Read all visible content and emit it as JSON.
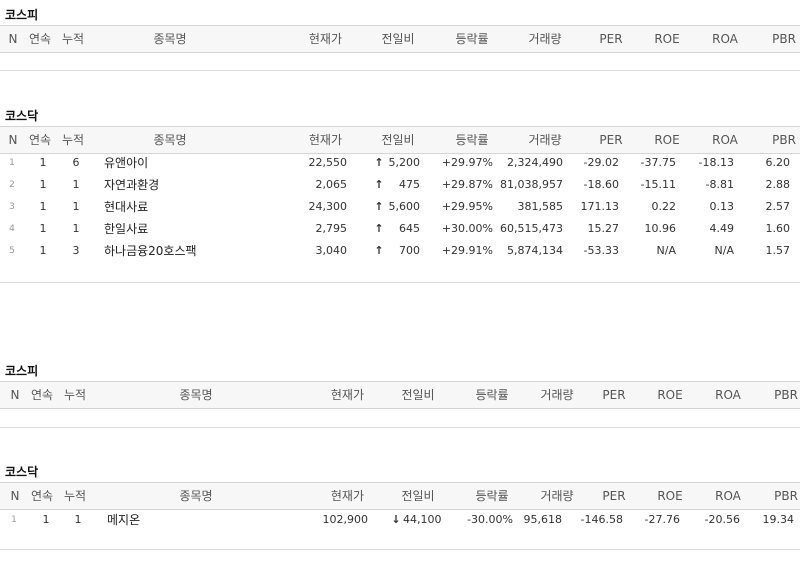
{
  "columns": {
    "n": "N",
    "streak": "연속",
    "total": "누적",
    "name": "종목명",
    "price": "현재가",
    "change": "전일비",
    "rate": "등락률",
    "volume": "거래량",
    "per": "PER",
    "roe": "ROE",
    "roa": "ROA",
    "pbr": "PBR"
  },
  "colors": {
    "up": "#d40000",
    "down": "#1e5fc8",
    "header_bg": "#f7f7f7"
  },
  "icons": {
    "up": "up-arrow-icon",
    "down": "down-arrow-icon"
  },
  "sections": [
    {
      "title": "코스피",
      "rows": []
    },
    {
      "title": "코스닥",
      "rows": [
        {
          "n": "1",
          "streak": "1",
          "total": "6",
          "name": "유앤아이",
          "price": "22,550",
          "change": "5,200",
          "rate": "+29.97%",
          "volume": "2,324,490",
          "per": "-29.02",
          "roe": "-37.75",
          "roa": "-18.13",
          "pbr": "6.20",
          "dir": "up"
        },
        {
          "n": "2",
          "streak": "1",
          "total": "1",
          "name": "자연과환경",
          "price": "2,065",
          "change": "475",
          "rate": "+29.87%",
          "volume": "81,038,957",
          "per": "-18.60",
          "roe": "-15.11",
          "roa": "-8.81",
          "pbr": "2.88",
          "dir": "up"
        },
        {
          "n": "3",
          "streak": "1",
          "total": "1",
          "name": "현대사료",
          "price": "24,300",
          "change": "5,600",
          "rate": "+29.95%",
          "volume": "381,585",
          "per": "171.13",
          "roe": "0.22",
          "roa": "0.13",
          "pbr": "2.57",
          "dir": "up"
        },
        {
          "n": "4",
          "streak": "1",
          "total": "1",
          "name": "한일사료",
          "price": "2,795",
          "change": "645",
          "rate": "+30.00%",
          "volume": "60,515,473",
          "per": "15.27",
          "roe": "10.96",
          "roa": "4.49",
          "pbr": "1.60",
          "dir": "up"
        },
        {
          "n": "5",
          "streak": "1",
          "total": "3",
          "name": "하나금융20호스팩",
          "price": "3,040",
          "change": "700",
          "rate": "+29.91%",
          "volume": "5,874,134",
          "per": "-53.33",
          "roe": "N/A",
          "roa": "N/A",
          "pbr": "1.57",
          "dir": "up"
        }
      ]
    },
    {
      "title": "코스피",
      "rows": []
    },
    {
      "title": "코스닥",
      "rows": [
        {
          "n": "1",
          "streak": "1",
          "total": "1",
          "name": "메지온",
          "price": "102,900",
          "change": "44,100",
          "rate": "-30.00%",
          "volume": "95,618",
          "per": "-146.58",
          "roe": "-27.76",
          "roa": "-20.56",
          "pbr": "19.34",
          "dir": "down"
        }
      ]
    }
  ]
}
